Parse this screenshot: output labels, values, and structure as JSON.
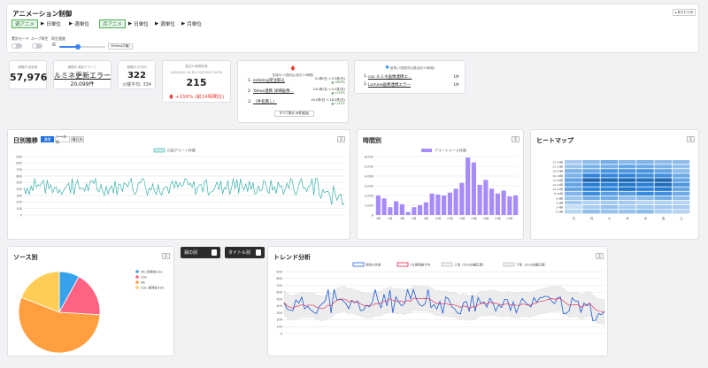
{
  "control": {
    "title": "アニメーション制御",
    "collapse": "折りたたみ",
    "row1": [
      "週アニメ",
      "日単位",
      "週単位"
    ],
    "row2": [
      "月アニメ",
      "日単位",
      "週単位",
      "月単位"
    ],
    "opts": [
      "累計モード",
      "ループ再生",
      "再生速度"
    ],
    "speed": "300ms(中速)"
  },
  "stats": [
    {
      "label": "期間内 総件数",
      "value": "57,976"
    },
    {
      "label": "期間内 最多アラート",
      "value": "ルミネ更新エラー",
      "sub": "20,099件"
    },
    {
      "label": "期間内 日平均",
      "value": "322",
      "sub": "火曜平均: 334"
    },
    {
      "label": "直近24時間件数",
      "range": "(2025/9/12 16:39〜2025/9/13 16:39)",
      "value": "215",
      "change": "+156% (前24時間比)"
    }
  ],
  "spike": {
    "title": "急増中 (3週前比/過去24時間)",
    "items": [
      {
        "n": "1.",
        "name": "ecbeing受注取込",
        "a": "2.0件/日 ⇒ 0.3件/日)",
        "b": "+650%"
      },
      {
        "n": "2.",
        "name": "Yahoo連携 詳細画像...",
        "a": "14.0件/日 ⇒ 4.2件/日)",
        "b": "+233%"
      },
      {
        "n": "3.",
        "name": "（件名無し）",
        "a": "44.0件/日 ⇒ 18.2件/日)",
        "b": "+142%"
      }
    ],
    "more": "すべて表示 (8件追加)"
  },
  "newa": {
    "title": "新規 (3週間中出現/過去24時間)",
    "items": [
      {
        "n": "1.",
        "name": "cos ルミネ画像連携エ...",
        "c": "1件"
      },
      {
        "n": "2.",
        "name": "Lumine画像連携エラー",
        "c": "1件"
      }
    ]
  },
  "daily": {
    "title": "日別推移",
    "tabs": [
      "通常",
      "ソース別",
      "曜日別"
    ],
    "legend": "日別アラート件数"
  },
  "hourly": {
    "title": "時間別",
    "legend": "アラートメール件数"
  },
  "heat": {
    "title": "ヒートマップ",
    "rows": [
      "22-24時",
      "20-22時",
      "18-20時",
      "16-18時",
      "14-16時",
      "12-14時",
      "10-12時",
      "8-10時",
      "6-8時",
      "4-6時",
      "2-4時",
      "0-2時"
    ],
    "cols": [
      "日",
      "月",
      "火",
      "水",
      "木",
      "金",
      "土"
    ]
  },
  "source": {
    "title": "ソース別",
    "legend": [
      "WE (開発者のみ)",
      "CDS",
      "WE",
      "CDS (開発者のみ)"
    ],
    "colors": [
      "#36a2eb",
      "#ff6384",
      "#ff9f40",
      "#ffcd56"
    ],
    "values": [
      8,
      18,
      55,
      19
    ]
  },
  "buttons": [
    "週の別",
    "タイトル別"
  ],
  "trend": {
    "title": "トレンド分析",
    "legend": [
      "実際の件数",
      "7日間移動平均",
      "上限（95%信頼区間）",
      "下限（95%信頼区間）"
    ]
  },
  "icons": {
    "dl": "download-icon",
    "spike": "arrow-up-icon",
    "new": "plus-icon"
  },
  "chart_data": [
    {
      "type": "line",
      "title": "日別推移",
      "ylim": [
        0,
        900
      ],
      "yticks": [
        0,
        100,
        200,
        300,
        400,
        500,
        600,
        700,
        800,
        900
      ]
    },
    {
      "type": "bar",
      "title": "時間別",
      "ylim": [
        0,
        6000
      ],
      "yticks": [
        0,
        1000,
        2000,
        3000,
        4000,
        5000,
        6000
      ],
      "categories": [
        "0時",
        "1時",
        "2時",
        "3時",
        "4時",
        "5時",
        "6時",
        "7時",
        "8時",
        "9時",
        "10時",
        "11時",
        "12時",
        "13時",
        "14時",
        "15時",
        "16時",
        "17時",
        "18時",
        "19時",
        "20時",
        "21時",
        "22時",
        "23時"
      ],
      "values": [
        2000,
        1700,
        800,
        1400,
        1100,
        300,
        800,
        1000,
        1300,
        2200,
        2100,
        2000,
        2300,
        2700,
        3300,
        5900,
        5400,
        3100,
        3600,
        2700,
        2200,
        2500,
        1900,
        2000
      ]
    },
    {
      "type": "heatmap",
      "title": "ヒートマップ"
    },
    {
      "type": "pie",
      "title": "ソース別",
      "categories": [
        "WE (開発者のみ)",
        "CDS",
        "WE",
        "CDS (開発者のみ)"
      ],
      "values": [
        8,
        18,
        55,
        19
      ]
    },
    {
      "type": "line",
      "title": "トレンド分析",
      "ylim": [
        0,
        900
      ],
      "yticks": [
        0,
        100,
        200,
        300,
        400,
        500,
        600,
        700,
        800,
        900
      ]
    }
  ]
}
